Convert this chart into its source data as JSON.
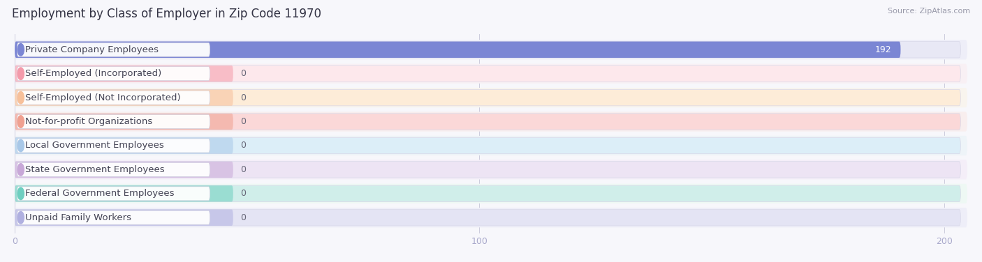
{
  "title": "Employment by Class of Employer in Zip Code 11970",
  "source": "Source: ZipAtlas.com",
  "categories": [
    "Private Company Employees",
    "Self-Employed (Incorporated)",
    "Self-Employed (Not Incorporated)",
    "Not-for-profit Organizations",
    "Local Government Employees",
    "State Government Employees",
    "Federal Government Employees",
    "Unpaid Family Workers"
  ],
  "values": [
    192,
    0,
    0,
    0,
    0,
    0,
    0,
    0
  ],
  "bar_colors": [
    "#7b86d4",
    "#f49aaa",
    "#f7c09a",
    "#f0a090",
    "#a8c8e8",
    "#c8a8d8",
    "#6ecfc0",
    "#b0b0e0"
  ],
  "bar_bg_colors": [
    "#e8e8f5",
    "#fde8ec",
    "#fdecd8",
    "#fbd8d8",
    "#dceef8",
    "#ede4f4",
    "#d0eeea",
    "#e4e4f4"
  ],
  "row_bg_colors": [
    "#eeeef8",
    "#f8f0f4",
    "#f8f4ee",
    "#f8eeee",
    "#eef4f8",
    "#f4eef8",
    "#eef8f4",
    "#eeeef8"
  ],
  "xlim_max": 205,
  "xticks": [
    0,
    100,
    200
  ],
  "title_fontsize": 12,
  "label_fontsize": 9.5,
  "value_fontsize": 9
}
